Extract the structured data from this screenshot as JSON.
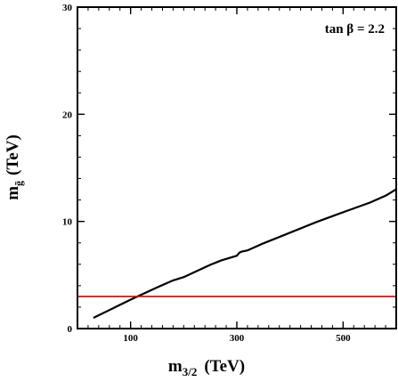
{
  "chart_data": {
    "type": "line",
    "xlabel": "m3/2",
    "xlabel_parts": {
      "main": "m",
      "sub": "3/2",
      "unit": "(TeV)"
    },
    "ylabel": "mg̃ (TeV)",
    "ylabel_parts": {
      "main": "m",
      "sub": "g̃",
      "unit": "(TeV)"
    },
    "annotation": "tan β = 2.2",
    "xlim": [
      0,
      600
    ],
    "ylim": [
      0,
      30
    ],
    "x_ticks_labeled": [
      {
        "value": 100,
        "label": "100"
      },
      {
        "value": 300,
        "label": "300"
      },
      {
        "value": 500,
        "label": "500"
      }
    ],
    "y_ticks_labeled": [
      {
        "value": 0,
        "label": "0"
      },
      {
        "value": 10,
        "label": "10"
      },
      {
        "value": 20,
        "label": "20"
      },
      {
        "value": 30,
        "label": "30"
      }
    ],
    "x_minor_step": 20,
    "y_minor_step": 2,
    "grid": false,
    "series": [
      {
        "color": "#000000",
        "x": [
          30,
          100,
          150,
          180,
          200,
          250,
          265,
          270,
          300,
          305,
          310,
          320,
          350,
          400,
          450,
          500,
          550,
          580,
          600
        ],
        "y": [
          1.0,
          2.7,
          3.85,
          4.5,
          4.8,
          5.95,
          6.25,
          6.35,
          6.8,
          7.1,
          7.2,
          7.3,
          7.95,
          8.95,
          9.95,
          10.85,
          11.75,
          12.4,
          13.0
        ]
      },
      {
        "color": "#cc0000",
        "x": [
          0,
          600
        ],
        "y": [
          3.0,
          3.0
        ]
      }
    ]
  }
}
